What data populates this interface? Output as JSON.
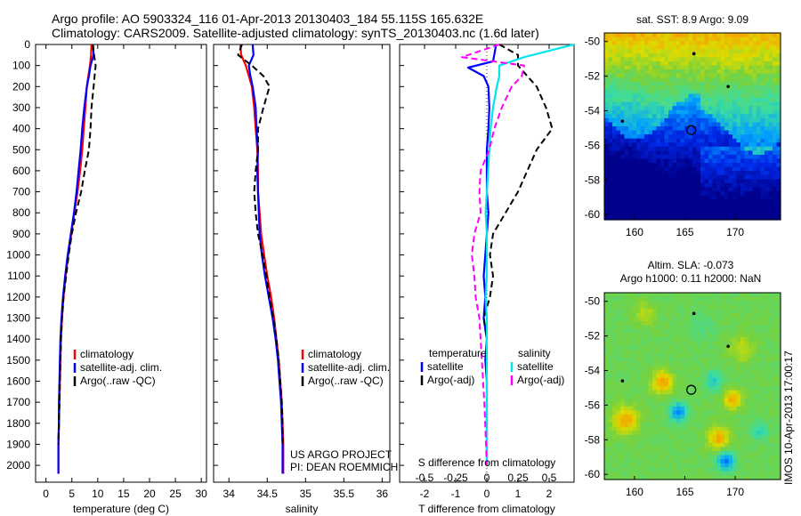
{
  "header": {
    "title_line1": "Argo profile: AO 5903324_116 01-Apr-2013 20130403_184 55.115S 165.632E",
    "title_line2": "Climatology: CARS2009. Satellite-adjusted climatology: synTS_20130403.nc (1.6d later)"
  },
  "footer": {
    "project": "US ARGO PROJECT",
    "pi": "PI: DEAN ROEMMICH"
  },
  "stamp": "IMOS 10-Apr-2013 17:00:17",
  "colors": {
    "climatology": "#ff0000",
    "satellite": "#0000ff",
    "argo": "#000000",
    "satellite_s": "#00e5ee",
    "argo_s": "#ff00ff"
  },
  "chart_data": [
    {
      "id": "temp",
      "type": "line",
      "xlabel": "temperature (deg C)",
      "ylabel": "",
      "xlim": [
        -2,
        31
      ],
      "ylim": [
        2080,
        0
      ],
      "xticks": [
        "0",
        "5",
        "10",
        "15",
        "20",
        "25",
        "30"
      ],
      "yticks": [
        "0",
        "100",
        "200",
        "300",
        "400",
        "500",
        "600",
        "700",
        "800",
        "900",
        "1000",
        "1100",
        "1200",
        "1300",
        "1400",
        "1500",
        "1600",
        "1700",
        "1800",
        "1900",
        "2000"
      ],
      "legend": [
        "climatology",
        "satellite-adj. clim.",
        "Argo(..raw -QC)"
      ],
      "series": [
        {
          "name": "climatology",
          "style": "clim",
          "x": [
            8.8,
            8.7,
            8.5,
            8.2,
            7.9,
            7.6,
            7.3,
            7.0,
            6.6,
            6.1,
            5.5,
            4.9,
            4.3,
            3.8,
            3.4,
            3.1,
            2.9,
            2.8,
            2.7,
            2.6,
            2.5,
            2.4,
            2.4
          ],
          "y": [
            0,
            50,
            100,
            150,
            200,
            300,
            400,
            500,
            600,
            700,
            800,
            900,
            1000,
            1100,
            1200,
            1300,
            1400,
            1500,
            1600,
            1700,
            1800,
            1900,
            2040
          ]
        },
        {
          "name": "satellite-adj. clim.",
          "style": "sat",
          "x": [
            9.1,
            9.2,
            8.6,
            8.3,
            7.9,
            7.4,
            7.0,
            6.7,
            6.3,
            5.9,
            5.4,
            4.8,
            4.2,
            3.7,
            3.3,
            3.0,
            2.8,
            2.7,
            2.6,
            2.5,
            2.5,
            2.4,
            2.4
          ],
          "y": [
            0,
            50,
            100,
            150,
            200,
            300,
            400,
            500,
            600,
            700,
            800,
            900,
            1000,
            1100,
            1200,
            1300,
            1400,
            1500,
            1600,
            1700,
            1800,
            1900,
            2040
          ]
        },
        {
          "name": "Argo(..raw -QC)",
          "style": "argo",
          "x": [
            9.0,
            9.3,
            9.6,
            9.4,
            9.2,
            8.8,
            8.6,
            8.3,
            7.5,
            6.8,
            5.8,
            5.0,
            4.4,
            3.9,
            3.4,
            3.1,
            2.9,
            2.8,
            2.7,
            2.6,
            2.5,
            2.4
          ],
          "y": [
            0,
            50,
            100,
            150,
            200,
            300,
            400,
            500,
            600,
            700,
            800,
            900,
            1000,
            1100,
            1200,
            1300,
            1400,
            1500,
            1600,
            1700,
            1800,
            1900
          ]
        }
      ]
    },
    {
      "id": "sal",
      "type": "line",
      "xlabel": "salinity",
      "ylabel": "",
      "xlim": [
        33.8,
        36.1
      ],
      "ylim": [
        2080,
        0
      ],
      "xticks": [
        "34",
        "34.5",
        "35",
        "35.5",
        "36"
      ],
      "legend": [
        "climatology",
        "satellite-adj. clim.",
        "Argo(..raw -QC)"
      ],
      "series": [
        {
          "name": "climatology",
          "style": "clim",
          "x": [
            34.15,
            34.16,
            34.22,
            34.26,
            34.3,
            34.33,
            34.35,
            34.37,
            34.38,
            34.38,
            34.4,
            34.42,
            34.46,
            34.5,
            34.55,
            34.59,
            34.62,
            34.65,
            34.67,
            34.69,
            34.7,
            34.71,
            34.71
          ],
          "y": [
            0,
            50,
            100,
            150,
            200,
            300,
            400,
            500,
            600,
            700,
            800,
            900,
            1000,
            1100,
            1200,
            1300,
            1400,
            1500,
            1600,
            1700,
            1800,
            1900,
            2040
          ]
        },
        {
          "name": "satellite-adj. clim.",
          "style": "sat",
          "x": [
            34.31,
            34.32,
            34.26,
            34.28,
            34.31,
            34.35,
            34.36,
            34.38,
            34.37,
            34.38,
            34.39,
            34.4,
            34.43,
            34.47,
            34.52,
            34.57,
            34.61,
            34.64,
            34.66,
            34.68,
            34.69,
            34.7,
            34.7
          ],
          "y": [
            0,
            50,
            100,
            150,
            200,
            300,
            400,
            500,
            600,
            700,
            800,
            900,
            1000,
            1100,
            1200,
            1300,
            1400,
            1500,
            1600,
            1700,
            1800,
            1900,
            2040
          ]
        },
        {
          "name": "Argo(..raw -QC)",
          "style": "argo",
          "x": [
            34.17,
            34.12,
            34.3,
            34.45,
            34.53,
            34.45,
            34.38,
            34.38,
            34.35,
            34.33,
            34.35,
            34.38,
            34.44,
            34.49,
            34.53,
            34.58,
            34.62,
            34.65,
            34.67,
            34.69,
            34.7,
            34.7
          ],
          "y": [
            0,
            50,
            100,
            150,
            200,
            300,
            400,
            500,
            600,
            700,
            800,
            900,
            1000,
            1100,
            1200,
            1300,
            1400,
            1500,
            1600,
            1700,
            1800,
            1900
          ]
        }
      ]
    },
    {
      "id": "diff",
      "type": "line",
      "xlabel": "T difference from climatology",
      "xlabel_top": "S difference from climatology",
      "xlim": [
        -2.8,
        2.8
      ],
      "ylim": [
        2080,
        0
      ],
      "xticks": [
        "-2",
        "-1",
        "0",
        "1",
        "2"
      ],
      "xticks_s": [
        "-0.5",
        "-0.25",
        "0",
        "0.25",
        "0.5"
      ],
      "legend_temperature_title": "temperature",
      "legend_salinity_title": "salinity",
      "legend_temperature": [
        "satellite",
        "Argo(-adj)"
      ],
      "legend_salinity": [
        "satellite",
        "Argo(-adj)"
      ],
      "series": [
        {
          "name": "satellite",
          "group": "temperature",
          "style": "sat",
          "x": [
            0.3,
            0.2,
            -0.6,
            -0.1,
            0.05,
            0.08,
            0.05,
            0,
            0,
            0,
            0.05,
            0,
            -0.05,
            -0.1,
            -0.05,
            -0.1,
            0,
            -0.05,
            0,
            0,
            0
          ],
          "y": [
            0,
            80,
            110,
            150,
            200,
            300,
            400,
            500,
            600,
            700,
            800,
            900,
            1000,
            1100,
            1200,
            1300,
            1400,
            1500,
            1600,
            1700,
            2000
          ]
        },
        {
          "name": "Argo(-adj)",
          "group": "temperature",
          "style": "argo",
          "x": [
            0.4,
            1.0,
            1.0,
            1.3,
            1.6,
            1.9,
            2.1,
            1.6,
            1.3,
            1.0,
            0.6,
            0.2,
            0.1,
            0.2,
            0.1,
            -0.1,
            0,
            0,
            0,
            0,
            0
          ],
          "y": [
            0,
            50,
            100,
            150,
            200,
            300,
            400,
            500,
            600,
            700,
            800,
            900,
            1000,
            1100,
            1200,
            1300,
            1400,
            1500,
            1600,
            1700,
            2000
          ]
        },
        {
          "name": "satellite",
          "group": "salinity",
          "style": "sat_s",
          "x": [
            0.7,
            0.3,
            0.1,
            0.1,
            0.08,
            0.05,
            0.03,
            0.02,
            0.01,
            0,
            -0.01,
            0,
            0,
            0,
            -0.01,
            0,
            0,
            0,
            0
          ],
          "y": [
            0,
            60,
            100,
            150,
            200,
            300,
            400,
            500,
            600,
            700,
            800,
            900,
            1000,
            1100,
            1200,
            1300,
            1500,
            1700,
            2000
          ]
        },
        {
          "name": "Argo(-adj)",
          "group": "salinity",
          "style": "argo_s",
          "x": [
            0.1,
            -0.2,
            0.3,
            0.28,
            0.2,
            0.12,
            0.06,
            0.02,
            -0.05,
            -0.06,
            -0.05,
            -0.1,
            -0.12,
            -0.1,
            -0.09,
            -0.06,
            -0.04,
            -0.02,
            0
          ],
          "y": [
            0,
            60,
            100,
            150,
            200,
            300,
            400,
            500,
            600,
            700,
            800,
            900,
            1000,
            1100,
            1200,
            1300,
            1500,
            1700,
            2000
          ]
        }
      ]
    },
    {
      "id": "sst",
      "type": "heatmap",
      "title": "sat. SST: 8.9 Argo: 9.09",
      "xlim": [
        157,
        174.5
      ],
      "ylim": [
        -60.3,
        -49.5
      ],
      "xticks": [
        "160",
        "165",
        "170"
      ],
      "yticks": [
        "-50",
        "-52",
        "-54",
        "-56",
        "-58",
        "-60"
      ],
      "marker": {
        "lon": 165.632,
        "lat": -55.115
      }
    },
    {
      "id": "sla",
      "type": "heatmap",
      "title": "Altim. SLA: -0.073",
      "subtitle": "Argo h1000: 0.11 h2000: NaN",
      "xlim": [
        157,
        174.5
      ],
      "ylim": [
        -60.3,
        -49.5
      ],
      "xticks": [
        "160",
        "165",
        "170"
      ],
      "yticks": [
        "-50",
        "-52",
        "-54",
        "-56",
        "-58",
        "-60"
      ],
      "marker": {
        "lon": 165.632,
        "lat": -55.115
      }
    }
  ]
}
